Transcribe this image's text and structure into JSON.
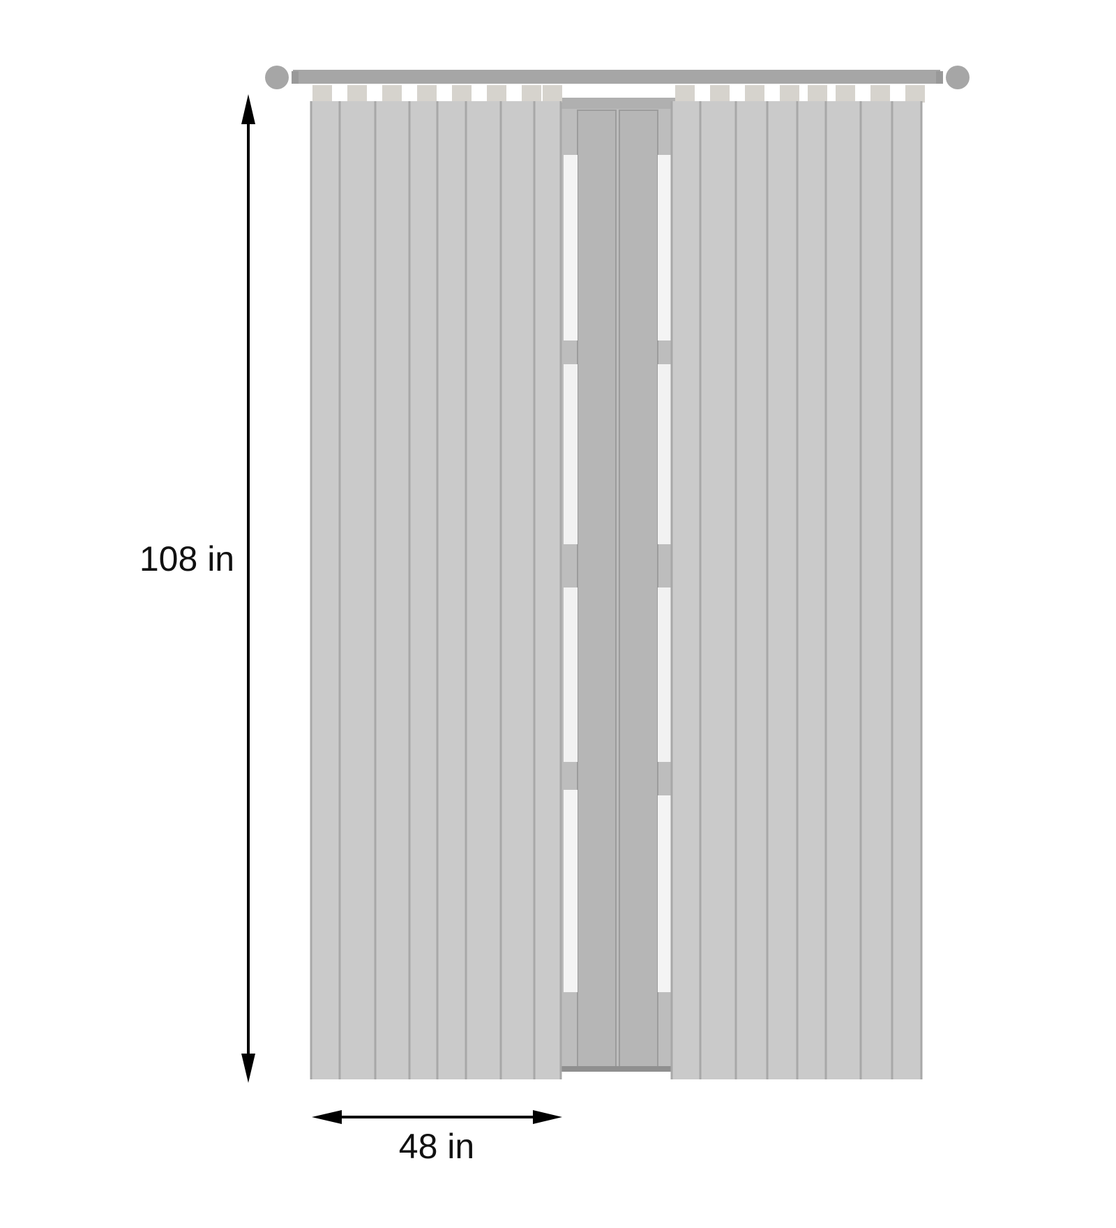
{
  "dimensions": {
    "height_label": "108 in",
    "width_label": "48 in"
  },
  "colors": {
    "rod": "#a6a6a6",
    "tab": "#d6d3cd",
    "panel": "#cacaca",
    "pleat_line": "#a8a8a8",
    "door_frame": "#bdbdbd",
    "door_glass": "#f4f4f4",
    "arrow": "#000000"
  }
}
